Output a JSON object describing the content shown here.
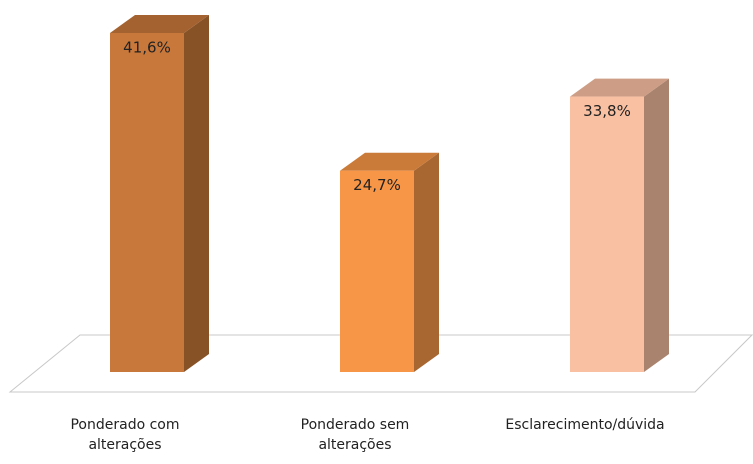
{
  "chart_data": {
    "type": "bar3d",
    "categories": [
      "Ponderado com alterações",
      "Ponderado sem alterações",
      "Esclarecimento/dúvida"
    ],
    "values": [
      41.6,
      24.7,
      33.8
    ],
    "value_labels": [
      "41,6%",
      "24,7%",
      "33,8%"
    ],
    "colors": [
      "#c8783a",
      "#f79646",
      "#fac0a2"
    ]
  }
}
